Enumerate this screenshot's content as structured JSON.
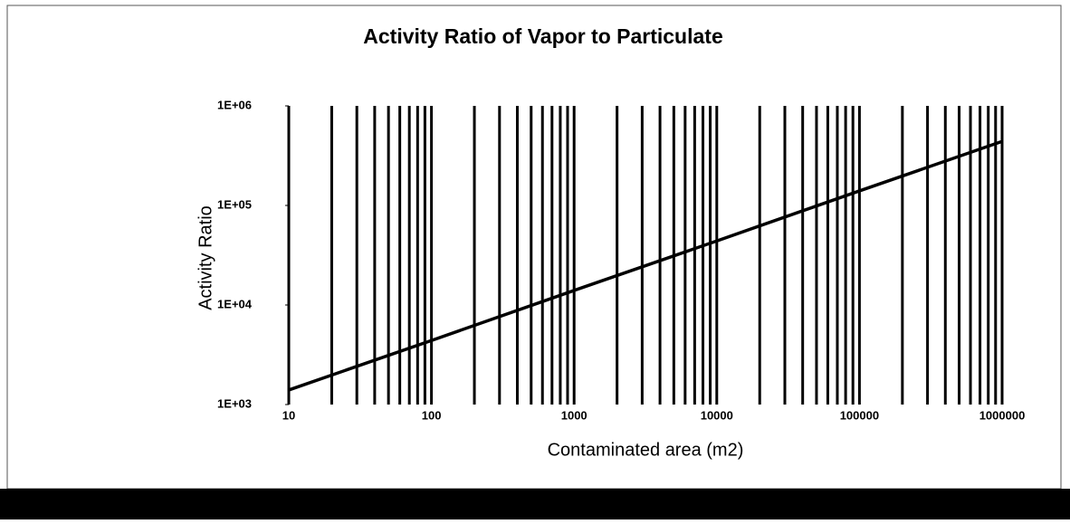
{
  "chart_data": {
    "type": "line",
    "title": "Activity Ratio of Vapor to Particulate",
    "x_label": "Contaminated area (m2)",
    "y_label": "Activity Ratio",
    "x": [
      10,
      100,
      1000,
      10000,
      100000,
      1000000
    ],
    "series": [
      {
        "name": "Activity Ratio",
        "color": "#000000",
        "values": [
          1400,
          4400,
          14000,
          44000,
          140000,
          440000
        ]
      }
    ],
    "xlog": true,
    "ylog": true,
    "xlim": [
      10,
      1000000
    ],
    "ylim": [
      1000,
      1000000
    ],
    "xticks": [
      10,
      100,
      1000,
      10000,
      100000,
      1000000
    ],
    "yticks": [
      {
        "value": 1000,
        "label": "1E+03"
      },
      {
        "value": 10000,
        "label": "1E+04"
      },
      {
        "value": 100000,
        "label": "1E+05"
      },
      {
        "value": 1000000,
        "label": "1E+06"
      }
    ],
    "xgrid": [
      10,
      20,
      30,
      40,
      50,
      60,
      70,
      80,
      90,
      100,
      200,
      300,
      400,
      500,
      600,
      700,
      800,
      900,
      1000,
      2000,
      3000,
      4000,
      5000,
      6000,
      7000,
      8000,
      9000,
      10000,
      20000,
      30000,
      40000,
      50000,
      60000,
      70000,
      80000,
      90000,
      100000,
      200000,
      300000,
      400000,
      500000,
      600000,
      700000,
      800000,
      900000,
      1000000
    ],
    "grid_color": "#000000"
  }
}
